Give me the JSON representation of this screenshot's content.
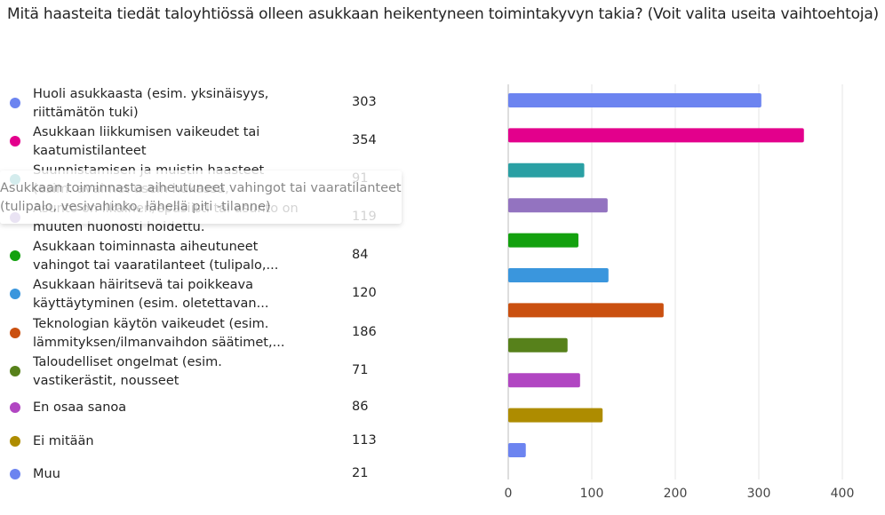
{
  "question": "Mitä haasteita tiedät taloyhtiössä olleen asukkaan heikentyneen toimintakyvyn takia? (Voit valita useita vaihtoehtoja)",
  "tooltip": {
    "line1": "Asukkaan toiminnasta aiheutuneet vahingot tai vaaratilanteet",
    "line2": "(tulipalo, vesivahinko, lähellä piti -tilanne)"
  },
  "chart_data": {
    "type": "bar",
    "orientation": "horizontal",
    "title": "Mitä haasteita tiedät taloyhtiössä olleen asukkaan heikentyneen toimintakyvyn takia? (Voit valita useita vaihtoehtoja)",
    "categories": [
      "Huoli asukkaasta (esim. yksinäisyys, riittämätön tuki)",
      "Asukkaan liikkumisen vaikeudet tai kaatumistilanteet",
      "Suunnistamisen ja muistin haasteet (esim. avaimet usein hukassa, eksyminen)",
      "Asunto on likainen/epäsiisti tai asunto on muuten huonosti hoidettu.",
      "Asukkaan toiminnasta aiheutuneet vahingot tai vaaratilanteet (tulipalo,...",
      "Asukkaan häiritsevä tai poikkeava käyttäytyminen (esim. oletettavan...",
      "Teknologian käytön vaikeudet (esim. lämmityksen/ilmanvaihdon säätimet,...",
      "Taloudelliset ongelmat (esim. vastikerästit, nousseet asumiskustannukset)",
      "En osaa sanoa",
      "Ei mitään",
      "Muu"
    ],
    "legend_labels": [
      "Huoli asukkaasta (esim. yksinäisyys, riittämätön tuki)",
      "Asukkaan liikkumisen vaikeudet tai kaatumistilanteet",
      "Suunnistamisen ja muistin haasteet (esim. avaimet usein hukassa, eksyminen)",
      "Asunto on likainen/epäsiisti tai asunto on muuten huonosti hoidettu.",
      "Asukkaan toiminnasta aiheutuneet vahingot tai vaaratilanteet (tulipalo,...",
      "Asukkaan häiritsevä tai poikkeava käyttäytyminen (esim. oletettavan...",
      "Teknologian käytön vaikeudet (esim. lämmityksen/ilmanvaihdon säätimet,...",
      "Taloudelliset ongelmat (esim. vastikerästit, nousseet asumiskustannukset)",
      "En osaa sanoa",
      "Ei mitään",
      "Muu"
    ],
    "values": [
      303,
      354,
      91,
      119,
      84,
      120,
      186,
      71,
      86,
      113,
      21
    ],
    "colors": [
      "#6C84F0",
      "#E3008C",
      "#2AA0A4",
      "#9373C0",
      "#13A10E",
      "#3A96DD",
      "#CA5010",
      "#57811B",
      "#B146C2",
      "#AE8C00",
      "#6C84F0"
    ],
    "xlim": [
      0,
      400
    ],
    "xticks": [
      "0",
      "100",
      "200",
      "300",
      "400"
    ],
    "xlabel": "",
    "ylabel": "",
    "grid": true,
    "legend": "left"
  }
}
